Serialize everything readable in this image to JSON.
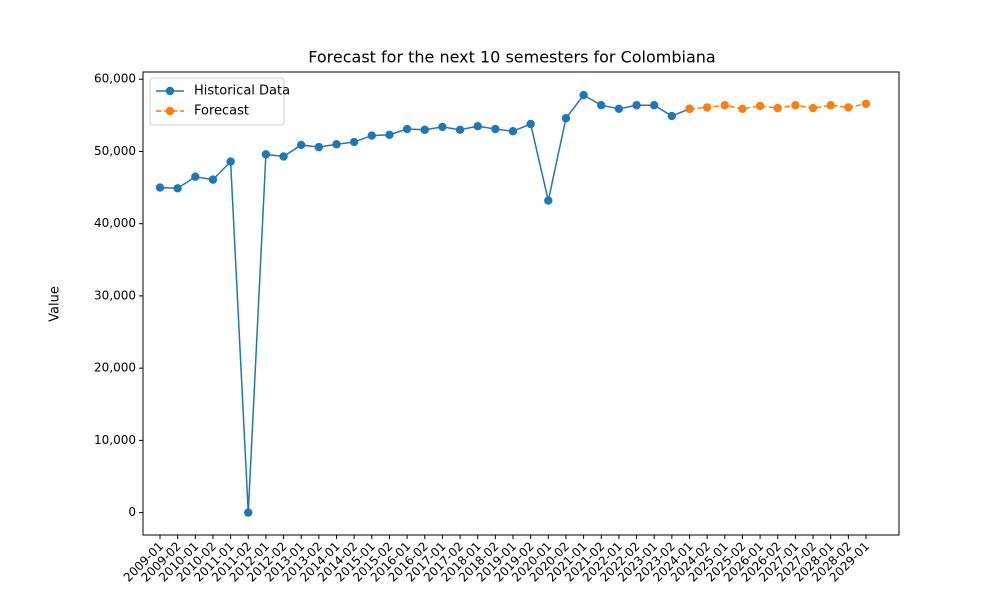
{
  "chart_data": {
    "type": "line",
    "title": "Forecast for the next 10 semesters for Colombiana",
    "y_label": "Value",
    "categories": [
      "2009-01",
      "2009-02",
      "2010-01",
      "2010-02",
      "2011-01",
      "2011-02",
      "2012-01",
      "2012-02",
      "2013-01",
      "2013-02",
      "2014-01",
      "2014-02",
      "2015-01",
      "2015-02",
      "2016-01",
      "2016-02",
      "2017-01",
      "2017-02",
      "2018-01",
      "2018-02",
      "2019-01",
      "2019-02",
      "2020-01",
      "2020-02",
      "2021-01",
      "2021-02",
      "2022-01",
      "2022-02",
      "2023-01",
      "2023-02",
      "2024-01",
      "2024-02",
      "2025-01",
      "2025-02",
      "2026-01",
      "2026-02",
      "2027-01",
      "2027-02",
      "2028-01",
      "2028-02",
      "2029-01"
    ],
    "series": [
      {
        "name": "Historical Data",
        "color": "#1f77b4",
        "dash": false,
        "values": [
          45000,
          44900,
          46500,
          46100,
          48600,
          0,
          49600,
          49300,
          50900,
          50600,
          51000,
          51300,
          52200,
          52300,
          53100,
          53000,
          53400,
          53000,
          53500,
          53100,
          52800,
          53800,
          43200,
          54600,
          57800,
          56400,
          55900,
          56400,
          56400,
          54900,
          55900,
          null,
          null,
          null,
          null,
          null,
          null,
          null,
          null,
          null,
          null
        ]
      },
      {
        "name": "Forecast",
        "color": "#ff7f0e",
        "dash": true,
        "values": [
          null,
          null,
          null,
          null,
          null,
          null,
          null,
          null,
          null,
          null,
          null,
          null,
          null,
          null,
          null,
          null,
          null,
          null,
          null,
          null,
          null,
          null,
          null,
          null,
          null,
          null,
          null,
          null,
          null,
          null,
          55900,
          56100,
          56400,
          55900,
          56300,
          56000,
          56400,
          56000,
          56400,
          56100,
          56600
        ]
      }
    ],
    "ylim": [
      -3100,
      61000
    ],
    "yticks": [
      0,
      {
        "value": 10000,
        "label": "10,000"
      },
      {
        "value": 20000,
        "label": "20,000"
      },
      {
        "value": 30000,
        "label": "30,000"
      },
      {
        "value": 40000,
        "label": "40,000"
      },
      {
        "value": 50000,
        "label": "50,000"
      },
      {
        "value": 60000,
        "label": "60,000"
      }
    ],
    "legend": "upper left"
  }
}
